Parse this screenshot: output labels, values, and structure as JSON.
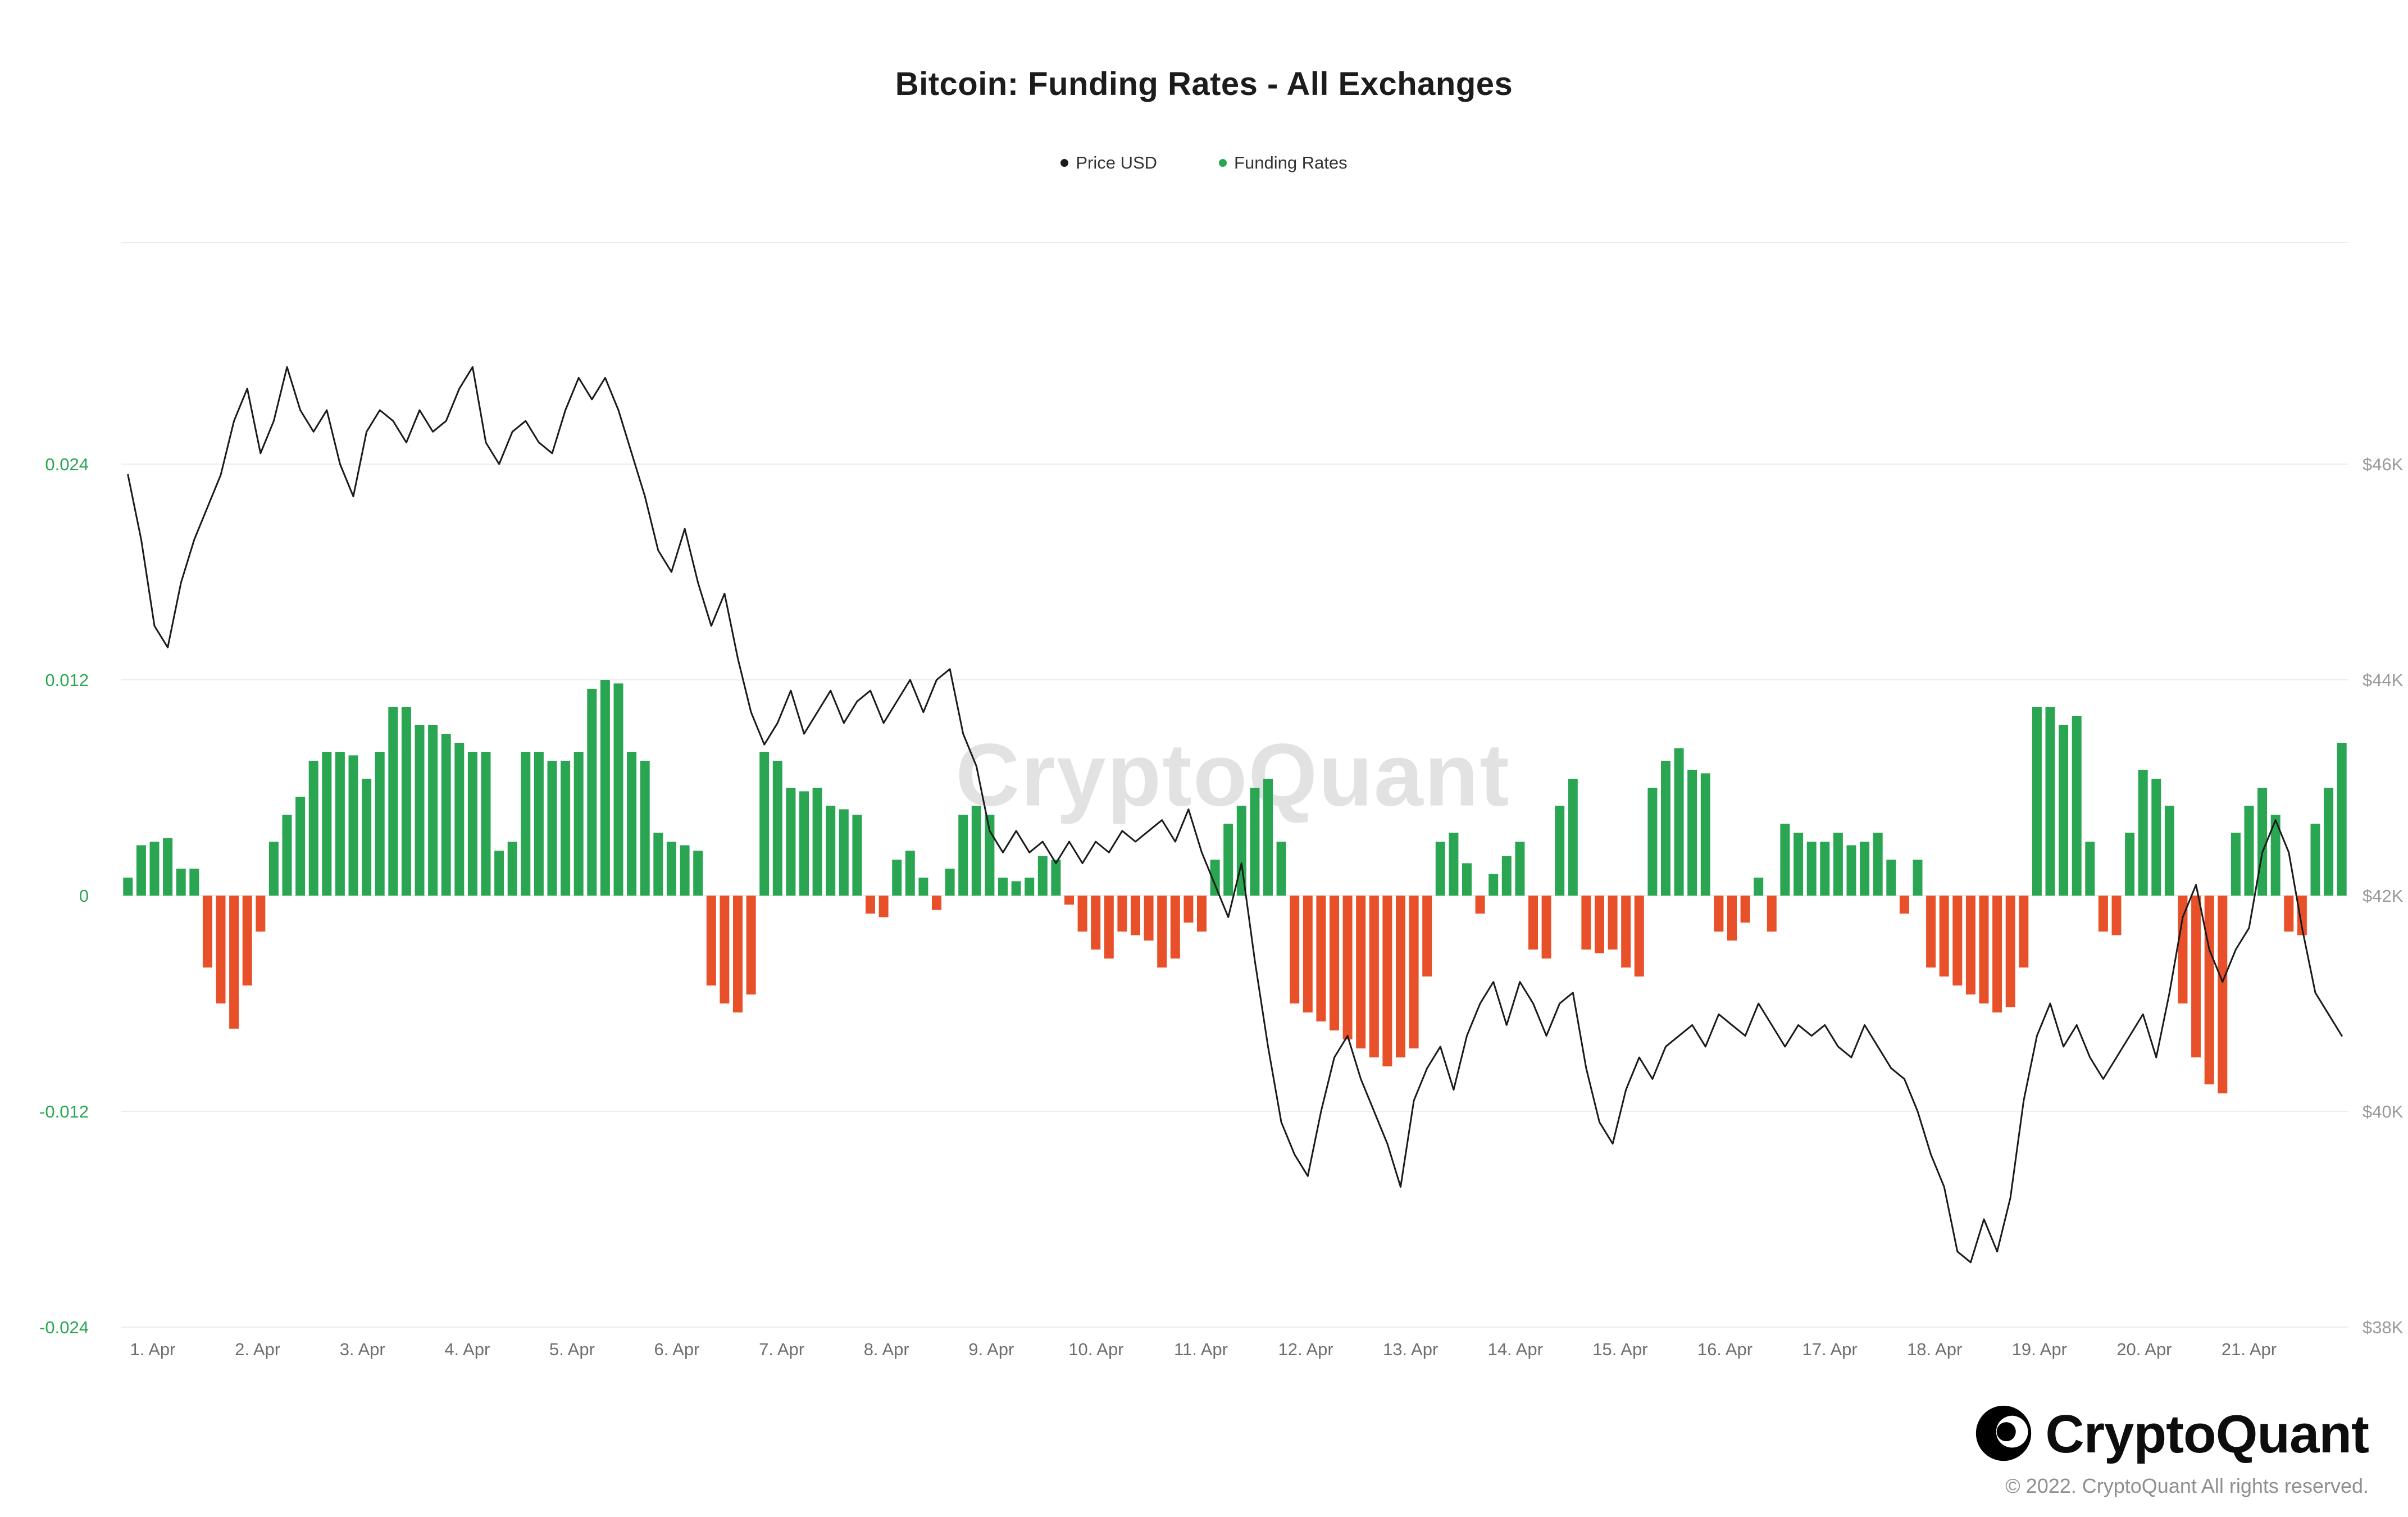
{
  "title": "Bitcoin: Funding Rates - All Exchanges",
  "watermark": "CryptoQuant",
  "legend": [
    {
      "label": "Price USD",
      "color": "#1b1b1b"
    },
    {
      "label": "Funding Rates",
      "color": "#2aa653"
    }
  ],
  "footer": {
    "brand": "CryptoQuant",
    "copyright": "© 2022. CryptoQuant All rights reserved."
  },
  "colors": {
    "bar_positive": "#2aa653",
    "bar_negative": "#e8502a",
    "price_line": "#1b1b1b",
    "gridline": "#ededed",
    "axis_left_text": "#2aa653",
    "axis_right_text": "#999999",
    "axis_x_text": "#6e6e6e"
  },
  "chart_data": {
    "type": "mixed",
    "title": "Bitcoin: Funding Rates - All Exchanges",
    "legend_position": "top",
    "grid": "horizontal",
    "x_axis": {
      "labels": [
        "1. Apr",
        "2. Apr",
        "3. Apr",
        "4. Apr",
        "5. Apr",
        "6. Apr",
        "7. Apr",
        "8. Apr",
        "9. Apr",
        "10. Apr",
        "11. Apr",
        "12. Apr",
        "13. Apr",
        "14. Apr",
        "15. Apr",
        "16. Apr",
        "17. Apr",
        "18. Apr",
        "19. Apr",
        "20. Apr",
        "21. Apr"
      ]
    },
    "y_axis_left": {
      "name": "Funding Rates",
      "tick_labels": [
        "0.024",
        "0.012",
        "0",
        "-0.012",
        "-0.024"
      ],
      "tick_values": [
        0.024,
        0.012,
        0,
        -0.012,
        -0.024
      ],
      "units_per_gridline": 0.012,
      "range": [
        -0.0265,
        0.0363
      ]
    },
    "y_axis_right": {
      "name": "Price USD",
      "tick_labels": [
        "$46K",
        "$44K",
        "$42K",
        "$40K",
        "$38K"
      ],
      "tick_values": [
        46,
        44,
        42,
        40,
        38
      ],
      "units_per_gridline": 2,
      "range": [
        37.5,
        48.1
      ]
    },
    "series": [
      {
        "name": "Funding Rates",
        "type": "bar",
        "interval": "3h",
        "positive_color": "#2aa653",
        "negative_color": "#e8502a",
        "values": [
          0.001,
          0.0028,
          0.003,
          0.0032,
          0.0015,
          0.0015,
          -0.004,
          -0.006,
          -0.0074,
          -0.005,
          -0.002,
          0.003,
          0.0045,
          0.0055,
          0.0075,
          0.008,
          0.008,
          0.0078,
          0.0065,
          0.008,
          0.0105,
          0.0105,
          0.0095,
          0.0095,
          0.009,
          0.0085,
          0.008,
          0.008,
          0.0025,
          0.003,
          0.008,
          0.008,
          0.0075,
          0.0075,
          0.008,
          0.0115,
          0.012,
          0.0118,
          0.008,
          0.0075,
          0.0035,
          0.003,
          0.0028,
          0.0025,
          -0.005,
          -0.006,
          -0.0065,
          -0.0055,
          0.008,
          0.0075,
          0.006,
          0.0058,
          0.006,
          0.005,
          0.0048,
          0.0045,
          -0.001,
          -0.0012,
          0.002,
          0.0025,
          0.001,
          -0.0008,
          0.0015,
          0.0045,
          0.005,
          0.0045,
          0.001,
          0.0008,
          0.001,
          0.0022,
          0.002,
          -0.0005,
          -0.002,
          -0.003,
          -0.0035,
          -0.002,
          -0.0022,
          -0.0025,
          -0.004,
          -0.0035,
          -0.0015,
          -0.002,
          0.002,
          0.004,
          0.005,
          0.006,
          0.0065,
          0.003,
          -0.006,
          -0.0065,
          -0.007,
          -0.0075,
          -0.008,
          -0.0085,
          -0.009,
          -0.0095,
          -0.009,
          -0.0085,
          -0.0045,
          0.003,
          0.0035,
          0.0018,
          -0.001,
          0.0012,
          0.0022,
          0.003,
          -0.003,
          -0.0035,
          0.005,
          0.0065,
          -0.003,
          -0.0032,
          -0.003,
          -0.004,
          -0.0045,
          0.006,
          0.0075,
          0.0082,
          0.007,
          0.0068,
          -0.002,
          -0.0025,
          -0.0015,
          0.001,
          -0.002,
          0.004,
          0.0035,
          0.003,
          0.003,
          0.0035,
          0.0028,
          0.003,
          0.0035,
          0.002,
          -0.001,
          0.002,
          -0.004,
          -0.0045,
          -0.005,
          -0.0055,
          -0.006,
          -0.0065,
          -0.0062,
          -0.004,
          0.0105,
          0.0105,
          0.0095,
          0.01,
          0.003,
          -0.002,
          -0.0022,
          0.0035,
          0.007,
          0.0065,
          0.005,
          -0.006,
          -0.009,
          -0.0105,
          -0.011,
          0.0035,
          0.005,
          0.006,
          0.0045,
          -0.002,
          -0.0022,
          0.004,
          0.006,
          0.0085
        ]
      },
      {
        "name": "Price USD",
        "type": "line",
        "unit": "USD thousands",
        "color": "#1b1b1b",
        "values": [
          45.9,
          45.3,
          44.5,
          44.3,
          44.9,
          45.3,
          45.6,
          45.9,
          46.4,
          46.7,
          46.1,
          46.4,
          46.9,
          46.5,
          46.3,
          46.5,
          46.0,
          45.7,
          46.3,
          46.5,
          46.4,
          46.2,
          46.5,
          46.3,
          46.4,
          46.7,
          46.9,
          46.2,
          46.0,
          46.3,
          46.4,
          46.2,
          46.1,
          46.5,
          46.8,
          46.6,
          46.8,
          46.5,
          46.1,
          45.7,
          45.2,
          45.0,
          45.4,
          44.9,
          44.5,
          44.8,
          44.2,
          43.7,
          43.4,
          43.6,
          43.9,
          43.5,
          43.7,
          43.9,
          43.6,
          43.8,
          43.9,
          43.6,
          43.8,
          44.0,
          43.7,
          44.0,
          44.1,
          43.5,
          43.2,
          42.6,
          42.4,
          42.6,
          42.4,
          42.5,
          42.3,
          42.5,
          42.3,
          42.5,
          42.4,
          42.6,
          42.5,
          42.6,
          42.7,
          42.5,
          42.8,
          42.4,
          42.1,
          41.8,
          42.3,
          41.4,
          40.6,
          39.9,
          39.6,
          39.4,
          40.0,
          40.5,
          40.7,
          40.3,
          40.0,
          39.7,
          39.3,
          40.1,
          40.4,
          40.6,
          40.2,
          40.7,
          41.0,
          41.2,
          40.8,
          41.2,
          41.0,
          40.7,
          41.0,
          41.1,
          40.4,
          39.9,
          39.7,
          40.2,
          40.5,
          40.3,
          40.6,
          40.7,
          40.8,
          40.6,
          40.9,
          40.8,
          40.7,
          41.0,
          40.8,
          40.6,
          40.8,
          40.7,
          40.8,
          40.6,
          40.5,
          40.8,
          40.6,
          40.4,
          40.3,
          40.0,
          39.6,
          39.3,
          38.7,
          38.6,
          39.0,
          38.7,
          39.2,
          40.1,
          40.7,
          41.0,
          40.6,
          40.8,
          40.5,
          40.3,
          40.5,
          40.7,
          40.9,
          40.5,
          41.1,
          41.8,
          42.1,
          41.5,
          41.2,
          41.5,
          41.7,
          42.4,
          42.7,
          42.4,
          41.7,
          41.1,
          40.9,
          40.7
        ]
      }
    ]
  }
}
